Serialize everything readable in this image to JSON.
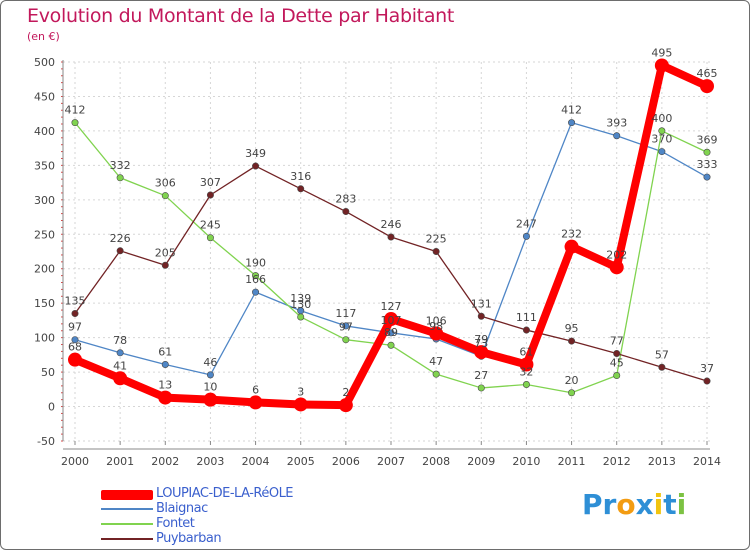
{
  "title": "Evolution du Montant de la Dette par Habitant",
  "unit": "(en €)",
  "logo": {
    "text": "Proxiti",
    "letters": [
      {
        "ch": "P",
        "color": "#2e8fd6"
      },
      {
        "ch": "r",
        "color": "#2e8fd6"
      },
      {
        "ch": "o",
        "color": "#f39c12"
      },
      {
        "ch": "x",
        "color": "#2e8fd6"
      },
      {
        "ch": "i",
        "color": "#f1c40f"
      },
      {
        "ch": "t",
        "color": "#2e8fd6"
      },
      {
        "ch": "i",
        "color": "#7cc242"
      }
    ]
  },
  "chart_data": {
    "type": "line",
    "title": "Evolution du Montant de la Dette par Habitant",
    "ylabel": "(en €)",
    "xlabel": "",
    "x": [
      "2000",
      "2001",
      "2002",
      "2003",
      "2004",
      "2005",
      "2006",
      "2007",
      "2008",
      "2009",
      "2010",
      "2011",
      "2012",
      "2013",
      "2014"
    ],
    "ylim": [
      -50,
      500
    ],
    "yticks": [
      "-50",
      "0",
      "50",
      "100",
      "150",
      "200",
      "250",
      "300",
      "350",
      "400",
      "450",
      "500"
    ],
    "grid": true,
    "legend_position": "bottom-left",
    "series": [
      {
        "name": "Blaignac",
        "color": "#4f86c6",
        "values": [
          97,
          78,
          61,
          46,
          166,
          139,
          117,
          107,
          98,
          73,
          247,
          412,
          393,
          370,
          333
        ]
      },
      {
        "name": "Fontet",
        "color": "#80d34f",
        "values": [
          412,
          332,
          306,
          245,
          190,
          130,
          97,
          89,
          47,
          27,
          32,
          20,
          45,
          400,
          369
        ]
      },
      {
        "name": "Puybarban",
        "color": "#722325",
        "values": [
          135,
          226,
          205,
          307,
          349,
          316,
          283,
          246,
          225,
          131,
          111,
          95,
          77,
          57,
          37
        ]
      },
      {
        "name": "LOUPIAC-DE-LA-RéOLE",
        "color": "#ff0000",
        "values": [
          68,
          41,
          13,
          10,
          6,
          3,
          2,
          127,
          106,
          79,
          61,
          232,
          202,
          495,
          465
        ]
      }
    ],
    "labels": [
      [
        "97",
        "78",
        "61",
        "46",
        "166",
        "139",
        "117",
        "107",
        "98",
        "73",
        "247",
        "412",
        "393",
        "370",
        "333"
      ],
      [
        "412",
        "332",
        "306",
        "245",
        "190",
        "130",
        "97",
        "89",
        "47",
        "27",
        "32",
        "20",
        "45",
        "400",
        "369"
      ],
      [
        "135",
        "226",
        "205",
        "307",
        "349",
        "316",
        "283",
        "246",
        "225",
        "131",
        "111",
        "95",
        "77",
        "57",
        "37"
      ],
      [
        "68",
        "41",
        "13",
        "10",
        "6",
        "3",
        "2",
        "127",
        "106",
        "79",
        "61",
        "232",
        "202",
        "495",
        "465"
      ]
    ]
  },
  "legend": [
    {
      "label": "LOUPIAC-DE-LA-RéOLE",
      "color": "#ff0000"
    },
    {
      "label": "Blaignac",
      "color": "#4f86c6"
    },
    {
      "label": "Fontet",
      "color": "#80d34f"
    },
    {
      "label": "Puybarban",
      "color": "#722325"
    }
  ]
}
